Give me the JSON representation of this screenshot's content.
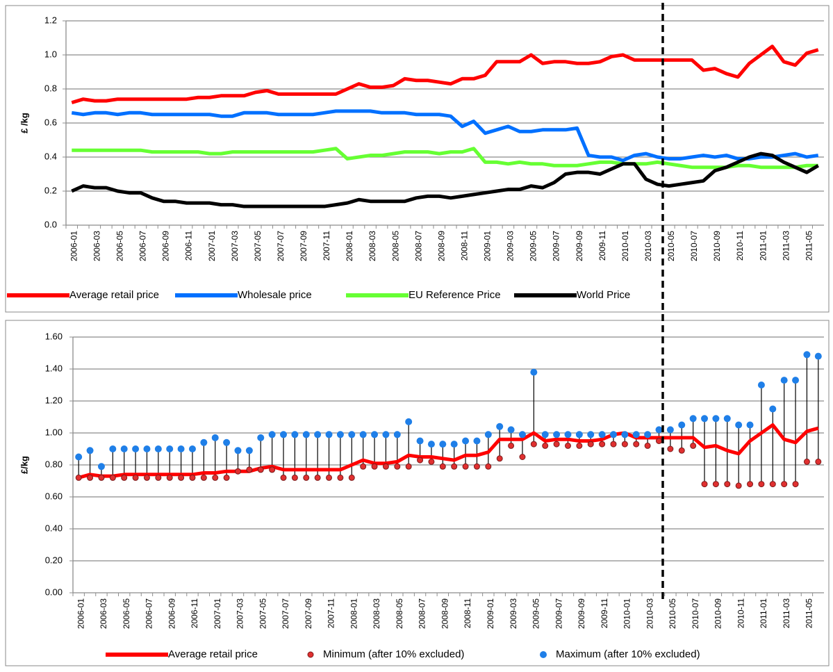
{
  "chart_data": [
    {
      "type": "line",
      "y_label": "£ /kg",
      "categories": [
        "2006-01",
        null,
        "2006-03",
        null,
        "2006-05",
        null,
        "2006-07",
        null,
        "2006-09",
        null,
        "2006-11",
        null,
        "2007-01",
        null,
        "2007-03",
        null,
        "2007-05",
        null,
        "2007-07",
        null,
        "2007-09",
        null,
        "2007-11",
        null,
        "2008-01",
        null,
        "2008-03",
        null,
        "2008-05",
        null,
        "2008-07",
        null,
        "2008-09",
        null,
        "2008-11",
        null,
        "2009-01",
        null,
        "2009-03",
        null,
        "2009-05",
        null,
        "2009-07",
        null,
        "2009-09",
        null,
        "2009-11",
        null,
        "2010-01",
        null,
        "2010-03",
        null,
        "2010-05",
        null,
        "2010-07",
        null,
        "2010-09",
        null,
        "2010-11",
        null,
        "2011-01",
        null,
        "2011-03",
        null,
        "2011-05",
        null
      ],
      "ylim": [
        0,
        1.2
      ],
      "yticks": [
        {
          "value": 0,
          "label": "0.0"
        },
        0.2,
        0.4,
        0.6,
        0.8,
        {
          "value": 1,
          "label": "1.0"
        },
        1.2
      ],
      "grid": true,
      "legend": "bottom",
      "series": [
        {
          "name": "Average retail price",
          "color": "#ff0000",
          "values": [
            0.72,
            0.74,
            0.73,
            0.73,
            0.74,
            0.74,
            0.74,
            0.74,
            0.74,
            0.74,
            0.74,
            0.75,
            0.75,
            0.76,
            0.76,
            0.76,
            0.78,
            0.79,
            0.77,
            0.77,
            0.77,
            0.77,
            0.77,
            0.77,
            0.8,
            0.83,
            0.81,
            0.81,
            0.82,
            0.86,
            0.85,
            0.85,
            0.84,
            0.83,
            0.86,
            0.86,
            0.88,
            0.96,
            0.96,
            0.96,
            1.0,
            0.95,
            0.96,
            0.96,
            0.95,
            0.95,
            0.96,
            0.99,
            1.0,
            0.97,
            0.97,
            0.97,
            0.97,
            0.97,
            0.97,
            0.91,
            0.92,
            0.89,
            0.87,
            0.95,
            1.0,
            1.05,
            0.96,
            0.94,
            1.01,
            1.03
          ]
        },
        {
          "name": "Wholesale price",
          "color": "#0070ff",
          "values": [
            0.66,
            0.65,
            0.66,
            0.66,
            0.65,
            0.66,
            0.66,
            0.65,
            0.65,
            0.65,
            0.65,
            0.65,
            0.65,
            0.64,
            0.64,
            0.66,
            0.66,
            0.66,
            0.65,
            0.65,
            0.65,
            0.65,
            0.66,
            0.67,
            0.67,
            0.67,
            0.67,
            0.66,
            0.66,
            0.66,
            0.65,
            0.65,
            0.65,
            0.64,
            0.58,
            0.61,
            0.54,
            0.56,
            0.58,
            0.55,
            0.55,
            0.56,
            0.56,
            0.56,
            0.57,
            0.41,
            0.4,
            0.4,
            0.38,
            0.41,
            0.42,
            0.4,
            0.39,
            0.39,
            0.4,
            0.41,
            0.4,
            0.41,
            0.39,
            0.39,
            0.4,
            0.4,
            0.41,
            0.42,
            0.4,
            0.41
          ]
        },
        {
          "name": "EU Reference Price",
          "color": "#66ff33",
          "values": [
            0.44,
            0.44,
            0.44,
            0.44,
            0.44,
            0.44,
            0.44,
            0.43,
            0.43,
            0.43,
            0.43,
            0.43,
            0.42,
            0.42,
            0.43,
            0.43,
            0.43,
            0.43,
            0.43,
            0.43,
            0.43,
            0.43,
            0.44,
            0.45,
            0.39,
            0.4,
            0.41,
            0.41,
            0.42,
            0.43,
            0.43,
            0.43,
            0.42,
            0.43,
            0.43,
            0.45,
            0.37,
            0.37,
            0.36,
            0.37,
            0.36,
            0.36,
            0.35,
            0.35,
            0.35,
            0.36,
            0.37,
            0.37,
            0.36,
            0.36,
            0.36,
            0.37,
            0.36,
            0.35,
            0.34,
            0.34,
            0.34,
            0.34,
            0.35,
            0.35,
            0.34,
            0.34,
            0.34,
            0.34,
            0.35,
            0.35
          ]
        },
        {
          "name": "World Price",
          "color": "#000000",
          "values": [
            0.2,
            0.23,
            0.22,
            0.22,
            0.2,
            0.19,
            0.19,
            0.16,
            0.14,
            0.14,
            0.13,
            0.13,
            0.13,
            0.12,
            0.12,
            0.11,
            0.11,
            0.11,
            0.11,
            0.11,
            0.11,
            0.11,
            0.11,
            0.12,
            0.13,
            0.15,
            0.14,
            0.14,
            0.14,
            0.14,
            0.16,
            0.17,
            0.17,
            0.16,
            0.17,
            0.18,
            0.19,
            0.2,
            0.21,
            0.21,
            0.23,
            0.22,
            0.25,
            0.3,
            0.31,
            0.31,
            0.3,
            0.33,
            0.36,
            0.36,
            0.27,
            0.24,
            0.23,
            0.24,
            0.25,
            0.26,
            0.32,
            0.34,
            0.37,
            0.4,
            0.42,
            0.41,
            0.37,
            0.34,
            0.31,
            0.35
          ]
        }
      ]
    },
    {
      "type": "line",
      "y_label": "£/kg",
      "categories": [
        "2006-01",
        null,
        "2006-03",
        null,
        "2006-05",
        null,
        "2006-07",
        null,
        "2006-09",
        null,
        "2006-11",
        null,
        "2007-01",
        null,
        "2007-03",
        null,
        "2007-05",
        null,
        "2007-07",
        null,
        "2007-09",
        null,
        "2007-11",
        null,
        "2008-01",
        null,
        "2008-03",
        null,
        "2008-05",
        null,
        "2008-07",
        null,
        "2008-09",
        null,
        "2008-11",
        null,
        "2009-01",
        null,
        "2009-03",
        null,
        "2009-05",
        null,
        "2009-07",
        null,
        "2009-09",
        null,
        "2009-11",
        null,
        "2010-01",
        null,
        "2010-03",
        null,
        "2010-05",
        null,
        "2010-07",
        null,
        "2010-09",
        null,
        "2010-11",
        null,
        "2011-01",
        null,
        "2011-03",
        null,
        "2011-05",
        null
      ],
      "ylim": [
        0,
        1.6
      ],
      "yticks": [
        {
          "value": 0,
          "label": "0.00"
        },
        {
          "value": 0.2,
          "label": "0.20"
        },
        {
          "value": 0.4,
          "label": "0.40"
        },
        {
          "value": 0.6,
          "label": "0.60"
        },
        {
          "value": 0.8,
          "label": "0.80"
        },
        {
          "value": 1,
          "label": "1.00"
        },
        {
          "value": 1.2,
          "label": "1.20"
        },
        {
          "value": 1.4,
          "label": "1.40"
        },
        {
          "value": 1.6,
          "label": "1.60"
        }
      ],
      "grid": true,
      "legend": "bottom",
      "drop_lines": true,
      "series": [
        {
          "name": "Average retail price",
          "type": "line",
          "color": "#ff0000",
          "values": [
            0.72,
            0.74,
            0.73,
            0.73,
            0.74,
            0.74,
            0.74,
            0.74,
            0.74,
            0.74,
            0.74,
            0.75,
            0.75,
            0.76,
            0.76,
            0.76,
            0.78,
            0.79,
            0.77,
            0.77,
            0.77,
            0.77,
            0.77,
            0.77,
            0.8,
            0.83,
            0.81,
            0.81,
            0.82,
            0.86,
            0.85,
            0.85,
            0.84,
            0.83,
            0.86,
            0.86,
            0.88,
            0.96,
            0.96,
            0.96,
            1.0,
            0.95,
            0.96,
            0.96,
            0.95,
            0.95,
            0.96,
            0.99,
            1.0,
            0.97,
            0.97,
            0.97,
            0.97,
            0.97,
            0.97,
            0.91,
            0.92,
            0.89,
            0.87,
            0.95,
            1.0,
            1.05,
            0.96,
            0.94,
            1.01,
            1.03
          ]
        },
        {
          "name": "Minimum (after 10% excluded)",
          "type": "scatter",
          "color": "#e03030",
          "values": [
            0.72,
            0.72,
            0.72,
            0.72,
            0.72,
            0.72,
            0.72,
            0.72,
            0.72,
            0.72,
            0.72,
            0.72,
            0.72,
            0.72,
            0.76,
            0.77,
            0.77,
            0.77,
            0.72,
            0.72,
            0.72,
            0.72,
            0.72,
            0.72,
            0.72,
            0.79,
            0.79,
            0.79,
            0.79,
            0.79,
            0.83,
            0.82,
            0.79,
            0.79,
            0.79,
            0.79,
            0.79,
            0.84,
            0.92,
            0.85,
            0.93,
            0.92,
            0.93,
            0.92,
            0.92,
            0.93,
            0.93,
            0.93,
            0.93,
            0.93,
            0.92,
            0.95,
            0.9,
            0.89,
            0.92,
            0.68,
            0.68,
            0.68,
            0.67,
            0.68,
            0.68,
            0.68,
            0.68,
            0.68,
            0.82,
            0.82
          ]
        },
        {
          "name": "Maximum (after 10% excluded)",
          "type": "scatter",
          "color": "#1f7fe8",
          "values": [
            0.85,
            0.89,
            0.79,
            0.9,
            0.9,
            0.9,
            0.9,
            0.9,
            0.9,
            0.9,
            0.9,
            0.94,
            0.97,
            0.94,
            0.89,
            0.89,
            0.97,
            0.99,
            0.99,
            0.99,
            0.99,
            0.99,
            0.99,
            0.99,
            0.99,
            0.99,
            0.99,
            0.99,
            0.99,
            1.07,
            0.95,
            0.93,
            0.93,
            0.93,
            0.95,
            0.95,
            0.99,
            1.04,
            1.02,
            0.99,
            1.38,
            0.99,
            0.99,
            0.99,
            0.99,
            0.99,
            0.99,
            0.99,
            0.99,
            0.99,
            0.99,
            1.02,
            1.02,
            1.05,
            1.09,
            1.09,
            1.09,
            1.09,
            1.05,
            1.05,
            1.3,
            1.15,
            1.33,
            1.33,
            1.49,
            1.48
          ]
        }
      ]
    }
  ]
}
